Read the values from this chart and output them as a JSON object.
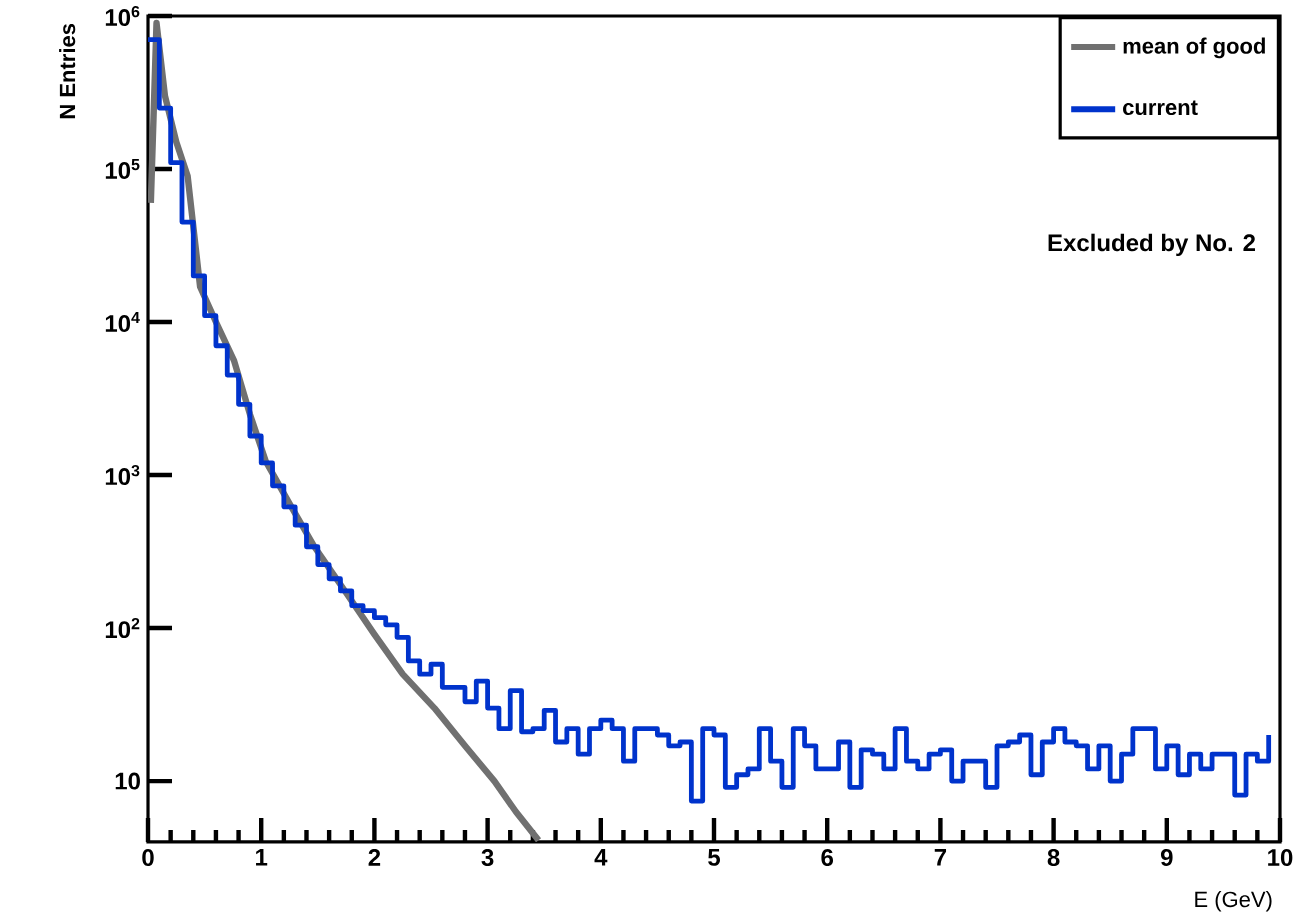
{
  "chart_data": {
    "type": "step",
    "xlabel": "E (GeV)",
    "ylabel": "N Entries",
    "annotations": [
      "Excluded by No. 2"
    ],
    "log": "y",
    "legend": "top right",
    "grid": false,
    "xlim": [
      0,
      10
    ],
    "xticks": [
      0,
      1,
      2,
      3,
      4,
      5,
      6,
      7,
      8,
      9,
      10
    ],
    "ylim": [
      4,
      1000000
    ],
    "yticks": [
      {
        "value": 10,
        "label": "10"
      },
      {
        "value": 100,
        "label": "10$^{2}$"
      },
      {
        "value": 1000,
        "label": "10$^{3}$"
      },
      {
        "value": 10000,
        "label": "10$^{4}$"
      },
      {
        "value": 100000,
        "label": "10$^{5}$"
      },
      {
        "value": 1000000,
        "label": "10$^{6}$"
      }
    ],
    "series": [
      {
        "name": "mean of good",
        "type": "line",
        "color": "#707070",
        "x": [
          0.025,
          0.075,
          0.15,
          0.25,
          0.35,
          0.46,
          0.6,
          0.76,
          0.9,
          1.04,
          1.25,
          1.47,
          1.75,
          2.0,
          2.25,
          2.53,
          2.8,
          3.06,
          3.25,
          3.45
        ],
        "values": [
          60000,
          900000,
          300000,
          150000,
          90000,
          17000,
          10000,
          5600,
          2500,
          1230,
          650,
          340,
          170,
          91,
          50,
          30,
          17,
          10,
          6.3,
          4.1
        ]
      },
      {
        "name": "current",
        "color": "#0033cc",
        "x": [
          0.0,
          0.1,
          0.2,
          0.3,
          0.4,
          0.5,
          0.6,
          0.7,
          0.8,
          0.9,
          1.0,
          1.1,
          1.2,
          1.3,
          1.4,
          1.5,
          1.6,
          1.7,
          1.8,
          1.9,
          2.0,
          2.1,
          2.2,
          2.3,
          2.4,
          2.5,
          2.6,
          2.7,
          2.8,
          2.9,
          3.0,
          3.1,
          3.2,
          3.3,
          3.4,
          3.5,
          3.6,
          3.7,
          3.8,
          3.9,
          4.0,
          4.1,
          4.2,
          4.3,
          4.4,
          4.5,
          4.6,
          4.7,
          4.8,
          4.9,
          5.0,
          5.1,
          5.2,
          5.3,
          5.4,
          5.5,
          5.6,
          5.7,
          5.8,
          5.9,
          6.0,
          6.1,
          6.2,
          6.3,
          6.4,
          6.5,
          6.6,
          6.7,
          6.8,
          6.9,
          7.0,
          7.1,
          7.2,
          7.3,
          7.4,
          7.5,
          7.6,
          7.7,
          7.8,
          7.9,
          8.0,
          8.1,
          8.2,
          8.3,
          8.4,
          8.5,
          8.6,
          8.7,
          8.8,
          8.9,
          9.0,
          9.1,
          9.2,
          9.3,
          9.4,
          9.5,
          9.6,
          9.7,
          9.8,
          9.9
        ],
        "values": [
          700000,
          250000,
          110000,
          45000,
          20000,
          11000,
          7000,
          4500,
          2900,
          1800,
          1200,
          850,
          620,
          470,
          340,
          260,
          210,
          175,
          140,
          130,
          117,
          105,
          87,
          61,
          50,
          58,
          41,
          41,
          33,
          45,
          30,
          22,
          39,
          21,
          22,
          29,
          18,
          22,
          15,
          22,
          25,
          22,
          13.5,
          22,
          22,
          20,
          17,
          18,
          7.4,
          22,
          20,
          9.1,
          11,
          12,
          22,
          13.5,
          9.1,
          22,
          17,
          12,
          12,
          18,
          9.1,
          16,
          15,
          12,
          22,
          13.5,
          12,
          15,
          16,
          10,
          13.5,
          13.5,
          9.1,
          17,
          18,
          20,
          11,
          18,
          22,
          18,
          17,
          12,
          17,
          10,
          15,
          22,
          22,
          12,
          17,
          11,
          15,
          12,
          15,
          15,
          8.1,
          15,
          13.5,
          20
        ]
      }
    ]
  }
}
